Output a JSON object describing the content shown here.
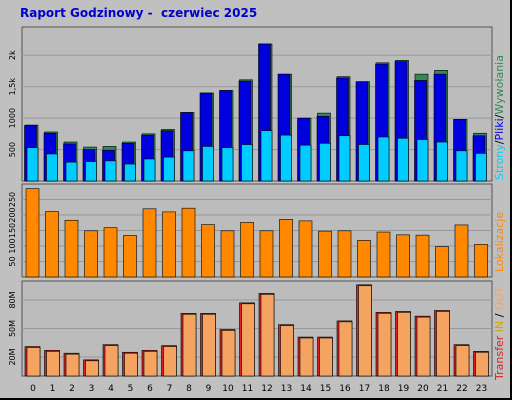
{
  "report": {
    "title_prefix": "Raport Godzinowy - ",
    "title_period": "czerwiec 2025"
  },
  "colors": {
    "background": "#c0c0c0",
    "panel": "#bcbcbc",
    "grid": "#999999",
    "hits": "#338855",
    "files": "#0000dd",
    "pages": "#00ccff",
    "sites": "#ff8800",
    "kbytes": "#dd2222",
    "kbytes_in": "#f4a460",
    "title": "#0000cc"
  },
  "legend": {
    "top": {
      "pages": "Strony",
      "sep1": "/",
      "files": "Pliki",
      "sep2": "/",
      "hits": "Wywołania"
    },
    "middle": {
      "sites": "Lokalizacje"
    },
    "bottom": {
      "transfer": "Transfer",
      "sep1": " ",
      "in": "IN",
      "sep2": " / ",
      "out": "OUT"
    }
  },
  "chart_data": [
    {
      "type": "bar",
      "name": "hits-files-pages",
      "categories": [
        "0",
        "1",
        "2",
        "3",
        "4",
        "5",
        "6",
        "7",
        "8",
        "9",
        "10",
        "11",
        "12",
        "13",
        "14",
        "15",
        "16",
        "17",
        "18",
        "19",
        "20",
        "21",
        "22",
        "23"
      ],
      "series": [
        {
          "name": "Wywołania",
          "values": [
            890,
            780,
            620,
            540,
            550,
            620,
            750,
            820,
            1090,
            1400,
            1440,
            1610,
            2180,
            1700,
            1000,
            1080,
            1660,
            1580,
            1880,
            1920,
            1700,
            1760,
            980,
            760
          ]
        },
        {
          "name": "Pliki",
          "values": [
            880,
            760,
            590,
            500,
            490,
            600,
            730,
            800,
            1090,
            1400,
            1440,
            1590,
            2180,
            1700,
            1000,
            1030,
            1640,
            1580,
            1860,
            1900,
            1600,
            1700,
            980,
            720
          ]
        },
        {
          "name": "Strony",
          "values": [
            530,
            430,
            300,
            310,
            320,
            270,
            350,
            380,
            480,
            550,
            530,
            580,
            800,
            730,
            570,
            600,
            720,
            580,
            700,
            680,
            660,
            620,
            480,
            440
          ]
        }
      ],
      "y_ticks": [
        "500",
        "1000",
        "1,5k",
        "2k"
      ],
      "ylim": [
        0,
        2450
      ]
    },
    {
      "type": "bar",
      "name": "sites",
      "categories": [
        "0",
        "1",
        "2",
        "3",
        "4",
        "5",
        "6",
        "7",
        "8",
        "9",
        "10",
        "11",
        "12",
        "13",
        "14",
        "15",
        "16",
        "17",
        "18",
        "19",
        "20",
        "21",
        "22",
        "23"
      ],
      "series": [
        {
          "name": "Lokalizacje",
          "values": [
            285,
            211,
            183,
            149,
            159,
            134,
            220,
            210,
            222,
            169,
            149,
            176,
            149,
            186,
            181,
            148,
            149,
            118,
            145,
            136,
            135,
            98,
            168,
            105
          ]
        }
      ],
      "y_ticks": [
        "50",
        "100",
        "150",
        "200",
        "250"
      ],
      "ylim": [
        0,
        300
      ]
    },
    {
      "type": "bar",
      "name": "transfer",
      "categories": [
        "0",
        "1",
        "2",
        "3",
        "4",
        "5",
        "6",
        "7",
        "8",
        "9",
        "10",
        "11",
        "12",
        "13",
        "14",
        "15",
        "16",
        "17",
        "18",
        "19",
        "20",
        "21",
        "22",
        "23"
      ],
      "series": [
        {
          "name": "IN",
          "values": [
            31,
            27,
            24,
            17,
            33,
            25,
            27,
            32,
            66,
            66,
            49,
            77,
            87,
            54,
            41,
            41,
            58,
            96,
            67,
            68,
            63,
            69,
            33,
            26
          ]
        },
        {
          "name": "OUT",
          "values": [
            30,
            26,
            23,
            16,
            32,
            24,
            26,
            31,
            65,
            65,
            48,
            76,
            86,
            53,
            40,
            40,
            57,
            95,
            66,
            67,
            62,
            68,
            32,
            25
          ]
        }
      ],
      "y_ticks": [
        "20M",
        "50M",
        "80M"
      ],
      "ylim": [
        0,
        100
      ]
    }
  ]
}
